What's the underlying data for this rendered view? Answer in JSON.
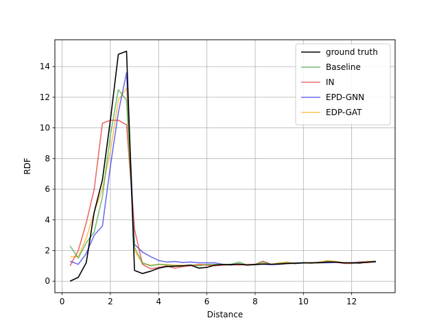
{
  "chart_data": {
    "type": "line",
    "xlabel": "Distance",
    "ylabel": "RDF",
    "xlim": [
      -0.3,
      13.8
    ],
    "ylim": [
      -0.75,
      15.75
    ],
    "xticks": [
      0,
      2,
      4,
      6,
      8,
      10,
      12
    ],
    "yticks": [
      0,
      2,
      4,
      6,
      8,
      10,
      12,
      14
    ],
    "grid": true,
    "legend_position": "top-right",
    "x": [
      0.33,
      0.67,
      1.0,
      1.33,
      1.67,
      2.0,
      2.33,
      2.67,
      3.0,
      3.33,
      3.67,
      4.0,
      4.33,
      4.67,
      5.0,
      5.33,
      5.67,
      6.0,
      6.33,
      6.67,
      7.0,
      7.33,
      7.67,
      8.0,
      8.33,
      8.67,
      9.0,
      9.33,
      9.67,
      10.0,
      10.33,
      10.67,
      11.0,
      11.33,
      11.67,
      12.0,
      12.33,
      12.67,
      13.0
    ],
    "series": [
      {
        "name": "ground truth",
        "color": "#000000",
        "values": [
          0.0,
          0.25,
          1.2,
          4.5,
          6.6,
          10.5,
          14.8,
          15.0,
          0.7,
          0.5,
          0.65,
          0.85,
          0.95,
          0.98,
          1.0,
          1.05,
          0.85,
          0.9,
          1.05,
          1.08,
          1.08,
          1.12,
          1.05,
          1.08,
          1.12,
          1.1,
          1.12,
          1.15,
          1.18,
          1.2,
          1.2,
          1.22,
          1.25,
          1.25,
          1.2,
          1.2,
          1.18,
          1.25,
          1.28
        ]
      },
      {
        "name": "Baseline",
        "color": "#2ca02c",
        "values": [
          2.3,
          1.5,
          2.5,
          3.2,
          5.5,
          9.5,
          12.5,
          11.8,
          2.2,
          1.2,
          1.0,
          1.1,
          1.05,
          1.0,
          1.0,
          1.05,
          1.0,
          1.1,
          1.1,
          1.1,
          1.1,
          1.25,
          1.05,
          1.1,
          1.25,
          1.1,
          1.15,
          1.2,
          1.15,
          1.2,
          1.18,
          1.2,
          1.3,
          1.25,
          1.2,
          1.2,
          1.2,
          1.25,
          1.3
        ]
      },
      {
        "name": "IN",
        "color": "#e41a1c",
        "values": [
          1.0,
          2.0,
          3.8,
          6.0,
          10.3,
          10.5,
          10.5,
          10.2,
          3.4,
          1.1,
          0.8,
          0.9,
          1.0,
          0.85,
          0.95,
          1.0,
          1.1,
          1.05,
          1.0,
          1.05,
          1.1,
          1.05,
          1.1,
          1.1,
          1.3,
          1.1,
          1.15,
          1.2,
          1.15,
          1.2,
          1.18,
          1.2,
          1.25,
          1.25,
          1.15,
          1.15,
          1.25,
          1.2,
          1.3
        ]
      },
      {
        "name": "EPD-GNN",
        "color": "#1f1fe8",
        "values": [
          1.3,
          1.1,
          1.8,
          3.0,
          3.6,
          7.5,
          11.0,
          13.6,
          2.4,
          1.9,
          1.6,
          1.35,
          1.25,
          1.28,
          1.22,
          1.25,
          1.2,
          1.2,
          1.2,
          1.1,
          1.05,
          1.1,
          1.05,
          1.1,
          1.1,
          1.08,
          1.1,
          1.15,
          1.15,
          1.18,
          1.2,
          1.2,
          1.2,
          1.22,
          1.2,
          1.2,
          1.25,
          1.25,
          1.25
        ]
      },
      {
        "name": "EDP-GAT",
        "color": "#ffa500",
        "values": [
          1.6,
          1.6,
          2.8,
          4.5,
          6.0,
          8.5,
          11.8,
          12.6,
          2.0,
          1.15,
          1.05,
          1.1,
          1.1,
          1.05,
          1.05,
          1.05,
          1.05,
          1.05,
          1.05,
          1.05,
          1.05,
          1.1,
          1.05,
          1.1,
          1.15,
          1.1,
          1.2,
          1.25,
          1.15,
          1.2,
          1.15,
          1.25,
          1.35,
          1.3,
          1.2,
          1.2,
          1.25,
          1.3,
          1.3
        ]
      }
    ]
  }
}
